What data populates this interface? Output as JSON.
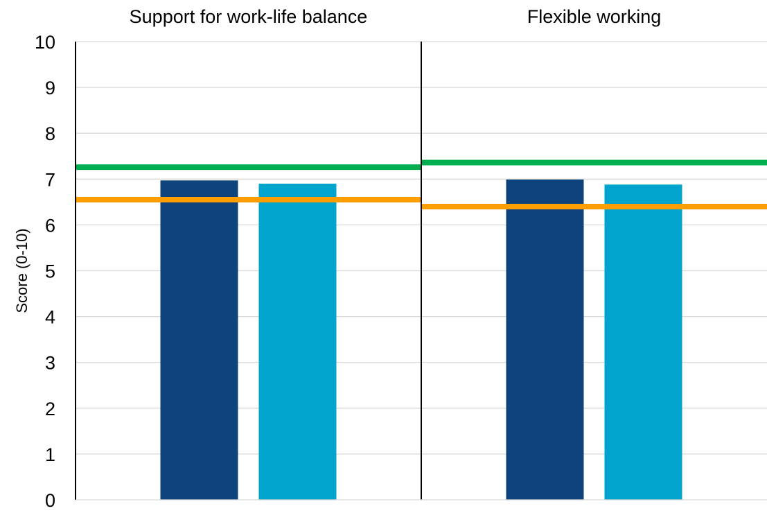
{
  "chart_data": {
    "type": "bar",
    "panels": [
      {
        "title": "Support for work-life balance",
        "values": [
          6.97,
          6.9
        ],
        "reference_lines": [
          7.26,
          6.55
        ]
      },
      {
        "title": "Flexible working",
        "values": [
          6.99,
          6.88
        ],
        "reference_lines": [
          7.36,
          6.4
        ]
      }
    ],
    "bar_colors": [
      "#0e447b",
      "#00a4cc"
    ],
    "reference_line_colors": [
      "#00b050",
      "#ff9e00"
    ],
    "ylabel": "Score (0-10)",
    "yticks": [
      "0",
      "1",
      "2",
      "3",
      "4",
      "5",
      "6",
      "7",
      "8",
      "9",
      "10"
    ],
    "ylim": [
      0,
      10
    ],
    "grid": true,
    "legend": "none"
  }
}
